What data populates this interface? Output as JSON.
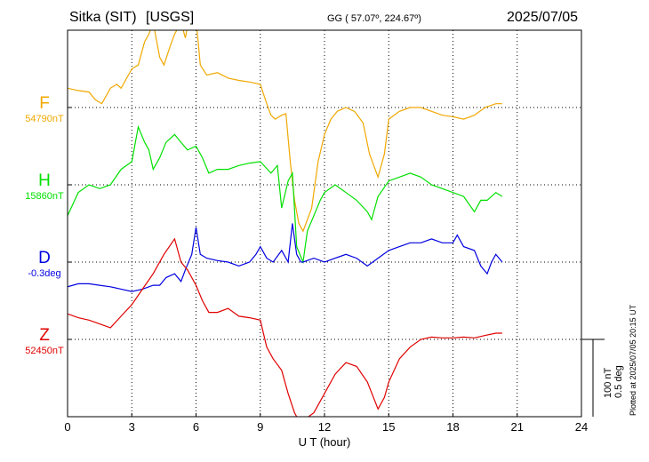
{
  "header": {
    "station": "Sitka (SIT)",
    "source": "[USGS]",
    "coords": "GG ( 57.07º, 224.67º)",
    "date": "2025/07/05"
  },
  "scale_bar": {
    "nt": "100 nT",
    "deg": "0.5 deg"
  },
  "plotted_note": "Plotted at 2025/07/05 20:15 UT",
  "chart_data": {
    "type": "line",
    "xlabel": "U T (hour)",
    "xlim": [
      0,
      24
    ],
    "xticks": [
      "0",
      "3",
      "6",
      "9",
      "12",
      "15",
      "18",
      "21",
      "24"
    ],
    "grid": true,
    "series": [
      {
        "name": "F",
        "baseline": "54790nT",
        "color": "#f0a800",
        "band": 1,
        "points": [
          [
            0,
            -0.25
          ],
          [
            0.5,
            -0.22
          ],
          [
            1,
            -0.2
          ],
          [
            1.3,
            -0.1
          ],
          [
            1.6,
            -0.05
          ],
          [
            2,
            -0.25
          ],
          [
            2.3,
            -0.3
          ],
          [
            2.5,
            -0.25
          ],
          [
            3,
            -0.5
          ],
          [
            3.3,
            -0.55
          ],
          [
            3.6,
            -0.85
          ],
          [
            3.8,
            -0.95
          ],
          [
            4,
            -1.1
          ],
          [
            4.3,
            -0.65
          ],
          [
            4.5,
            -0.55
          ],
          [
            4.8,
            -0.8
          ],
          [
            5,
            -0.95
          ],
          [
            5.3,
            -1.1
          ],
          [
            5.5,
            -0.9
          ],
          [
            5.7,
            -1.2
          ],
          [
            6,
            -1.15
          ],
          [
            6.2,
            -0.55
          ],
          [
            6.5,
            -0.42
          ],
          [
            7,
            -0.45
          ],
          [
            7.5,
            -0.38
          ],
          [
            8,
            -0.35
          ],
          [
            8.5,
            -0.33
          ],
          [
            9,
            -0.3
          ],
          [
            9.3,
            -0.05
          ],
          [
            9.5,
            0.1
          ],
          [
            9.7,
            0.15
          ],
          [
            10,
            0.1
          ],
          [
            10.2,
            0.08
          ],
          [
            10.4,
            0.7
          ],
          [
            10.6,
            1.2
          ],
          [
            10.8,
            1.5
          ],
          [
            11,
            1.6
          ],
          [
            11.4,
            1.3
          ],
          [
            11.7,
            0.7
          ],
          [
            12,
            0.35
          ],
          [
            12.3,
            0.15
          ],
          [
            12.6,
            0.05
          ],
          [
            13,
            0.0
          ],
          [
            13.4,
            0.05
          ],
          [
            13.8,
            0.2
          ],
          [
            14.1,
            0.6
          ],
          [
            14.5,
            0.9
          ],
          [
            14.8,
            0.6
          ],
          [
            15,
            0.15
          ],
          [
            15.5,
            0.05
          ],
          [
            16,
            0.0
          ],
          [
            16.5,
            0.0
          ],
          [
            17,
            0.05
          ],
          [
            17.5,
            0.1
          ],
          [
            18,
            0.12
          ],
          [
            18.5,
            0.15
          ],
          [
            19,
            0.1
          ],
          [
            19.5,
            0.0
          ],
          [
            20,
            -0.05
          ],
          [
            20.3,
            -0.05
          ]
        ]
      },
      {
        "name": "H",
        "baseline": "15860nT",
        "color": "#00e000",
        "band": 2,
        "points": [
          [
            0,
            0.4
          ],
          [
            0.5,
            0.1
          ],
          [
            1,
            0.0
          ],
          [
            1.5,
            0.05
          ],
          [
            2,
            0.0
          ],
          [
            2.5,
            -0.2
          ],
          [
            3,
            -0.3
          ],
          [
            3.3,
            -0.75
          ],
          [
            3.6,
            -0.55
          ],
          [
            3.8,
            -0.45
          ],
          [
            4,
            -0.2
          ],
          [
            4.3,
            -0.35
          ],
          [
            4.6,
            -0.55
          ],
          [
            5,
            -0.65
          ],
          [
            5.3,
            -0.55
          ],
          [
            5.6,
            -0.45
          ],
          [
            6,
            -0.5
          ],
          [
            6.3,
            -0.35
          ],
          [
            6.6,
            -0.15
          ],
          [
            7,
            -0.2
          ],
          [
            7.5,
            -0.2
          ],
          [
            8,
            -0.25
          ],
          [
            8.5,
            -0.28
          ],
          [
            9,
            -0.3
          ],
          [
            9.5,
            -0.15
          ],
          [
            9.8,
            -0.25
          ],
          [
            10,
            0.3
          ],
          [
            10.3,
            -0.05
          ],
          [
            10.5,
            -0.15
          ],
          [
            10.7,
            0.8
          ],
          [
            11,
            1.0
          ],
          [
            11.2,
            0.6
          ],
          [
            11.5,
            0.4
          ],
          [
            11.8,
            0.2
          ],
          [
            12,
            0.1
          ],
          [
            12.5,
            0.0
          ],
          [
            13,
            0.1
          ],
          [
            13.5,
            0.2
          ],
          [
            14,
            0.35
          ],
          [
            14.2,
            0.45
          ],
          [
            14.5,
            0.15
          ],
          [
            15,
            -0.05
          ],
          [
            15.5,
            -0.1
          ],
          [
            16,
            -0.15
          ],
          [
            16.5,
            -0.1
          ],
          [
            17,
            0.0
          ],
          [
            17.5,
            0.05
          ],
          [
            18,
            0.1
          ],
          [
            18.5,
            0.15
          ],
          [
            19,
            0.35
          ],
          [
            19.3,
            0.2
          ],
          [
            19.6,
            0.2
          ],
          [
            20,
            0.1
          ],
          [
            20.3,
            0.15
          ]
        ]
      },
      {
        "name": "D",
        "baseline": "-0.3deg",
        "color": "#0000e0",
        "band": 3,
        "points": [
          [
            0,
            0.32
          ],
          [
            0.5,
            0.28
          ],
          [
            1,
            0.28
          ],
          [
            1.5,
            0.3
          ],
          [
            2,
            0.32
          ],
          [
            2.5,
            0.35
          ],
          [
            3,
            0.38
          ],
          [
            3.5,
            0.35
          ],
          [
            4,
            0.3
          ],
          [
            4.3,
            0.3
          ],
          [
            4.6,
            0.2
          ],
          [
            5,
            0.15
          ],
          [
            5.3,
            0.25
          ],
          [
            5.5,
            0.1
          ],
          [
            5.8,
            -0.1
          ],
          [
            6,
            -0.45
          ],
          [
            6.2,
            -0.1
          ],
          [
            6.5,
            -0.05
          ],
          [
            7,
            -0.02
          ],
          [
            7.5,
            0.0
          ],
          [
            8,
            0.05
          ],
          [
            8.5,
            0.0
          ],
          [
            8.8,
            -0.1
          ],
          [
            9,
            -0.2
          ],
          [
            9.3,
            -0.05
          ],
          [
            9.6,
            0.0
          ],
          [
            10,
            -0.15
          ],
          [
            10.3,
            0.0
          ],
          [
            10.5,
            -0.5
          ],
          [
            10.7,
            -0.1
          ],
          [
            10.9,
            0.0
          ],
          [
            11,
            0.0
          ],
          [
            11.5,
            -0.05
          ],
          [
            12,
            0.0
          ],
          [
            12.5,
            -0.05
          ],
          [
            13,
            -0.1
          ],
          [
            13.5,
            -0.05
          ],
          [
            14,
            0.05
          ],
          [
            14.5,
            -0.05
          ],
          [
            15,
            -0.15
          ],
          [
            15.5,
            -0.2
          ],
          [
            16,
            -0.25
          ],
          [
            16.5,
            -0.25
          ],
          [
            17,
            -0.3
          ],
          [
            17.5,
            -0.25
          ],
          [
            18,
            -0.25
          ],
          [
            18.2,
            -0.35
          ],
          [
            18.5,
            -0.2
          ],
          [
            19,
            -0.15
          ],
          [
            19.3,
            0.05
          ],
          [
            19.6,
            0.15
          ],
          [
            19.8,
            0.0
          ],
          [
            20,
            -0.1
          ],
          [
            20.3,
            0.0
          ]
        ]
      },
      {
        "name": "Z",
        "baseline": "52450nT",
        "color": "#e00000",
        "band": 4,
        "points": [
          [
            0,
            -0.33
          ],
          [
            0.5,
            -0.28
          ],
          [
            1,
            -0.25
          ],
          [
            1.5,
            -0.2
          ],
          [
            2,
            -0.15
          ],
          [
            2.5,
            -0.3
          ],
          [
            3,
            -0.45
          ],
          [
            3.5,
            -0.65
          ],
          [
            4,
            -0.85
          ],
          [
            4.5,
            -1.1
          ],
          [
            5,
            -1.3
          ],
          [
            5.3,
            -1.0
          ],
          [
            5.6,
            -0.9
          ],
          [
            6,
            -0.7
          ],
          [
            6.3,
            -0.5
          ],
          [
            6.6,
            -0.35
          ],
          [
            7,
            -0.35
          ],
          [
            7.5,
            -0.4
          ],
          [
            8,
            -0.3
          ],
          [
            8.5,
            -0.28
          ],
          [
            9,
            -0.25
          ],
          [
            9.3,
            0.1
          ],
          [
            9.6,
            0.25
          ],
          [
            10,
            0.4
          ],
          [
            10.3,
            0.7
          ],
          [
            10.6,
            0.95
          ],
          [
            10.8,
            1.05
          ],
          [
            11,
            1.05
          ],
          [
            11.5,
            0.95
          ],
          [
            12,
            0.7
          ],
          [
            12.5,
            0.45
          ],
          [
            13,
            0.3
          ],
          [
            13.5,
            0.35
          ],
          [
            14,
            0.55
          ],
          [
            14.5,
            0.9
          ],
          [
            14.8,
            0.75
          ],
          [
            15,
            0.55
          ],
          [
            15.5,
            0.25
          ],
          [
            16,
            0.1
          ],
          [
            16.5,
            0.0
          ],
          [
            17,
            -0.03
          ],
          [
            17.5,
            -0.02
          ],
          [
            18,
            -0.02
          ],
          [
            18.5,
            -0.03
          ],
          [
            19,
            -0.02
          ],
          [
            19.5,
            -0.05
          ],
          [
            20,
            -0.08
          ],
          [
            20.3,
            -0.08
          ]
        ]
      }
    ]
  }
}
